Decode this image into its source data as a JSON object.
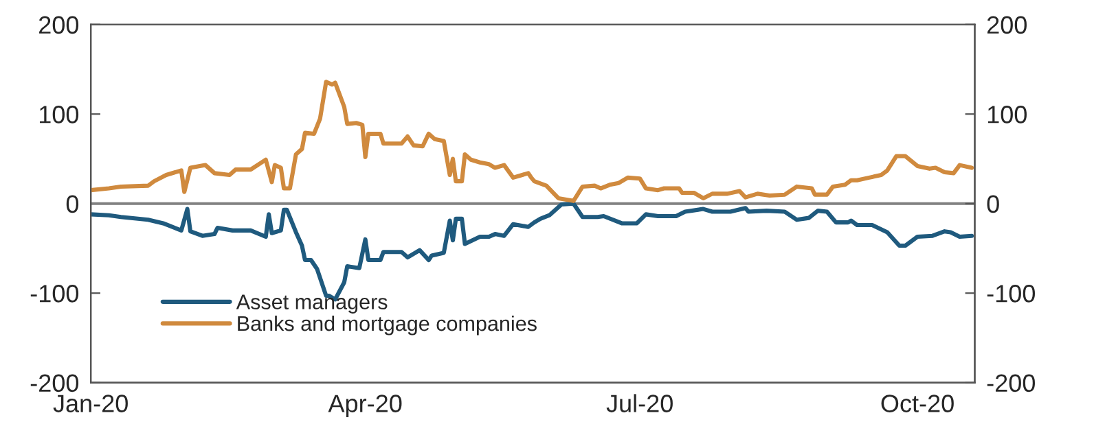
{
  "chart_data": {
    "type": "line",
    "xlim": [
      "2020-01-01",
      "2020-10-20"
    ],
    "xticks": [
      {
        "value": "2020-01-01",
        "label": "Jan-20"
      },
      {
        "value": "2020-04-01",
        "label": "Apr-20"
      },
      {
        "value": "2020-07-01",
        "label": "Jul-20"
      },
      {
        "value": "2020-10-01",
        "label": "Oct-20"
      }
    ],
    "ylim": [
      -200,
      200
    ],
    "yticks": [
      -200,
      -100,
      0,
      100,
      200
    ],
    "y2lim": [
      -200,
      200
    ],
    "y2ticks": [
      -200,
      -100,
      0,
      100,
      200
    ],
    "grid": false,
    "legend": "bottom left",
    "line_style": "solid",
    "marker": "none",
    "ref_lines": [
      {
        "axis": "y",
        "value": 0,
        "color": "#808080"
      }
    ],
    "series": [
      {
        "name": "Asset managers",
        "color": "#1f5a7e",
        "x": [
          "2020-01-01",
          "2020-01-07",
          "2020-01-11",
          "2020-01-20",
          "2020-01-25",
          "2020-01-31",
          "2020-02-02",
          "2020-02-03",
          "2020-02-07",
          "2020-02-11",
          "2020-02-12",
          "2020-02-17",
          "2020-02-23",
          "2020-02-28",
          "2020-02-29",
          "2020-03-01",
          "2020-03-04",
          "2020-03-05",
          "2020-03-06",
          "2020-03-09",
          "2020-03-11",
          "2020-03-12",
          "2020-03-14",
          "2020-03-16",
          "2020-03-19",
          "2020-03-20",
          "2020-03-22",
          "2020-03-25",
          "2020-03-26",
          "2020-03-30",
          "2020-04-01",
          "2020-04-02",
          "2020-04-06",
          "2020-04-07",
          "2020-04-13",
          "2020-04-15",
          "2020-04-19",
          "2020-04-22",
          "2020-04-23",
          "2020-04-27",
          "2020-04-29",
          "2020-04-30",
          "2020-05-01",
          "2020-05-03",
          "2020-05-04",
          "2020-05-09",
          "2020-05-12",
          "2020-05-14",
          "2020-05-17",
          "2020-05-20",
          "2020-05-25",
          "2020-05-27",
          "2020-05-29",
          "2020-06-01",
          "2020-06-05",
          "2020-06-09",
          "2020-06-12",
          "2020-06-17",
          "2020-06-19",
          "2020-06-25",
          "2020-06-30",
          "2020-07-03",
          "2020-07-07",
          "2020-07-13",
          "2020-07-16",
          "2020-07-22",
          "2020-07-25",
          "2020-07-31",
          "2020-08-05",
          "2020-08-06",
          "2020-08-12",
          "2020-08-18",
          "2020-08-22",
          "2020-08-26",
          "2020-08-29",
          "2020-09-01",
          "2020-09-04",
          "2020-09-08",
          "2020-09-09",
          "2020-09-11",
          "2020-09-16",
          "2020-09-21",
          "2020-09-25",
          "2020-09-27",
          "2020-10-01",
          "2020-10-06",
          "2020-10-10",
          "2020-10-12",
          "2020-10-15",
          "2020-10-19"
        ],
        "values": [
          -12,
          -13,
          -15,
          -18,
          -22,
          -30,
          -6,
          -31,
          -36,
          -34,
          -27,
          -30,
          -30,
          -37,
          -12,
          -33,
          -30,
          -7,
          -7,
          -32,
          -47,
          -63,
          -63,
          -73,
          -103,
          -103,
          -107,
          -88,
          -70,
          -72,
          -40,
          -63,
          -63,
          -54,
          -54,
          -60,
          -52,
          -63,
          -58,
          -55,
          -19,
          -41,
          -17,
          -17,
          -45,
          -37,
          -37,
          -34,
          -36,
          -23,
          -26,
          -21,
          -17,
          -13,
          -1,
          0,
          -15,
          -15,
          -14,
          -22,
          -22,
          -12,
          -14,
          -14,
          -9,
          -6,
          -9,
          -9,
          -5,
          -9,
          -8,
          -9,
          -18,
          -16,
          -8,
          -9,
          -21,
          -21,
          -19,
          -24,
          -24,
          -32,
          -47,
          -47,
          -37,
          -36,
          -31,
          -32,
          -37,
          -36
        ]
      },
      {
        "name": "Banks and mortgage companies",
        "color": "#d08a3e",
        "x": [
          "2020-01-01",
          "2020-01-07",
          "2020-01-11",
          "2020-01-20",
          "2020-01-22",
          "2020-01-26",
          "2020-01-31",
          "2020-02-01",
          "2020-02-03",
          "2020-02-08",
          "2020-02-11",
          "2020-02-16",
          "2020-02-18",
          "2020-02-23",
          "2020-02-28",
          "2020-03-01",
          "2020-03-02",
          "2020-03-04",
          "2020-03-05",
          "2020-03-07",
          "2020-03-09",
          "2020-03-11",
          "2020-03-12",
          "2020-03-15",
          "2020-03-17",
          "2020-03-19",
          "2020-03-21",
          "2020-03-22",
          "2020-03-25",
          "2020-03-26",
          "2020-03-29",
          "2020-03-31",
          "2020-04-01",
          "2020-04-02",
          "2020-04-06",
          "2020-04-07",
          "2020-04-13",
          "2020-04-15",
          "2020-04-17",
          "2020-04-20",
          "2020-04-22",
          "2020-04-24",
          "2020-04-27",
          "2020-04-29",
          "2020-04-30",
          "2020-05-01",
          "2020-05-03",
          "2020-05-04",
          "2020-05-06",
          "2020-05-09",
          "2020-05-12",
          "2020-05-14",
          "2020-05-17",
          "2020-05-20",
          "2020-05-23",
          "2020-05-25",
          "2020-05-26",
          "2020-05-27",
          "2020-05-31",
          "2020-06-04",
          "2020-06-09",
          "2020-06-12",
          "2020-06-16",
          "2020-06-18",
          "2020-06-21",
          "2020-06-24",
          "2020-06-27",
          "2020-07-01",
          "2020-07-03",
          "2020-07-07",
          "2020-07-09",
          "2020-07-14",
          "2020-07-15",
          "2020-07-19",
          "2020-07-22",
          "2020-07-25",
          "2020-07-30",
          "2020-08-03",
          "2020-08-05",
          "2020-08-09",
          "2020-08-13",
          "2020-08-18",
          "2020-08-22",
          "2020-08-27",
          "2020-08-28",
          "2020-09-01",
          "2020-09-03",
          "2020-09-07",
          "2020-09-09",
          "2020-09-11",
          "2020-09-15",
          "2020-09-19",
          "2020-09-21",
          "2020-09-24",
          "2020-09-27",
          "2020-10-01",
          "2020-10-05",
          "2020-10-07",
          "2020-10-10",
          "2020-10-13",
          "2020-10-15",
          "2020-10-19"
        ],
        "values": [
          15,
          17,
          19,
          20,
          25,
          32,
          37,
          13,
          40,
          43,
          34,
          32,
          38,
          38,
          49,
          24,
          43,
          40,
          17,
          17,
          55,
          61,
          79,
          78,
          95,
          136,
          133,
          135,
          108,
          89,
          90,
          88,
          52,
          78,
          78,
          67,
          67,
          75,
          65,
          64,
          78,
          72,
          70,
          32,
          50,
          25,
          25,
          55,
          49,
          46,
          44,
          40,
          43,
          29,
          32,
          34,
          29,
          25,
          20,
          6,
          3,
          19,
          20,
          17,
          21,
          23,
          29,
          28,
          17,
          15,
          17,
          17,
          12,
          12,
          6,
          11,
          11,
          14,
          7,
          11,
          9,
          10,
          19,
          17,
          10,
          10,
          19,
          21,
          26,
          26,
          29,
          32,
          37,
          53,
          53,
          42,
          39,
          40,
          35,
          34,
          43,
          40
        ]
      }
    ]
  }
}
